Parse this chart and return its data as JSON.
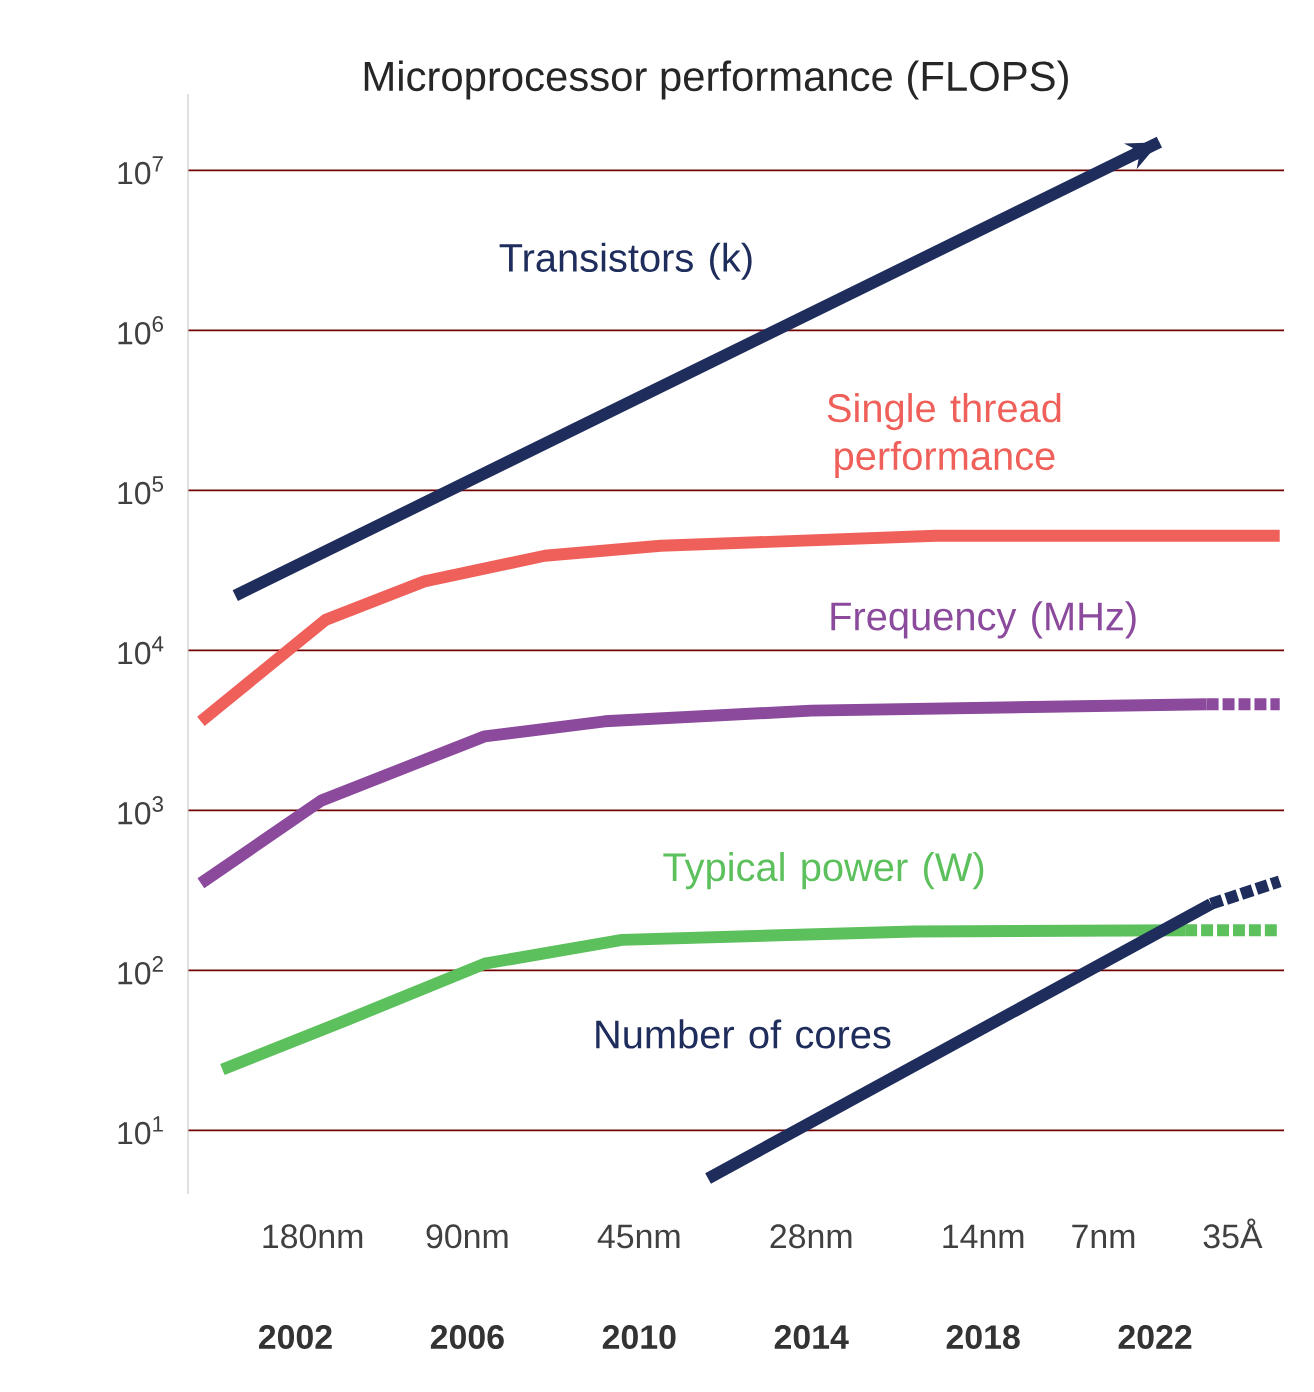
{
  "chart_data": {
    "type": "line",
    "title": "Microprocessor performance (FLOPS)",
    "log": "y",
    "grid": "y",
    "marker": "none",
    "xlim": [
      1999.5,
      2025
    ],
    "ylim": [
      4,
      30000000
    ],
    "xticks": [
      2002,
      2006,
      2010,
      2014,
      2018,
      2022
    ],
    "annotations": [
      "180nm",
      "90nm",
      "45nm",
      "28nm",
      "14nm",
      "7nm",
      "35Å"
    ],
    "yticks": [
      {
        "value": 10,
        "label": "10$^{1}$"
      },
      {
        "value": 100,
        "label": "10$^{2}$"
      },
      {
        "value": 1000,
        "label": "10$^{3}$"
      },
      {
        "value": 10000,
        "label": "10$^{4}$"
      },
      {
        "value": 100000,
        "label": "10$^{5}$"
      },
      {
        "value": 1000000,
        "label": "10$^{6}$"
      },
      {
        "value": 10000000,
        "label": "10$^{7}$"
      }
    ],
    "series": [
      {
        "name": "Transistors (k)",
        "color": "#1f2d5c",
        "line_style": "solid",
        "x": [
          2000.6,
          2022.1
        ],
        "values": [
          22000,
          15000000
        ]
      },
      {
        "name": "Single thread performance",
        "color": "#f0605a",
        "line_style": "solid",
        "x": [
          1999.8,
          2002.7,
          2005,
          2007.8,
          2010.5,
          2016.9,
          2024.9
        ],
        "values": [
          3600,
          15500,
          27000,
          39000,
          45000,
          52000,
          52000
        ]
      },
      {
        "name": "Frequency (MHz)",
        "color": "#8b4a9c",
        "line_style": "solid",
        "x": [
          1999.8,
          2002.6,
          2006.4,
          2009.2,
          2014,
          2023.2
        ],
        "values": [
          350,
          1150,
          2900,
          3600,
          4200,
          4600
        ]
      },
      {
        "color": "#8b4a9c",
        "line_style": "dotted",
        "x": [
          2023.2,
          2024.9
        ],
        "values": [
          4600,
          4600
        ]
      },
      {
        "name": "Typical power (W)",
        "color": "#5cc05c",
        "line_style": "solid",
        "x": [
          2000.3,
          2003.2,
          2006.4,
          2009.6,
          2016.4,
          2022.7
        ],
        "values": [
          24,
          49,
          110,
          155,
          175,
          178
        ]
      },
      {
        "color": "#5cc05c",
        "line_style": "dotted",
        "x": [
          2022.7,
          2024.9
        ],
        "values": [
          178,
          178
        ]
      },
      {
        "name": "Number of cores",
        "color": "#1f2d5c",
        "line_style": "solid",
        "x": [
          2011.6,
          2023.3
        ],
        "values": [
          5,
          260
        ]
      },
      {
        "color": "#1f2d5c",
        "line_style": "dotted",
        "x": [
          2023.3,
          2024.9
        ],
        "values": [
          260,
          360
        ]
      }
    ]
  }
}
